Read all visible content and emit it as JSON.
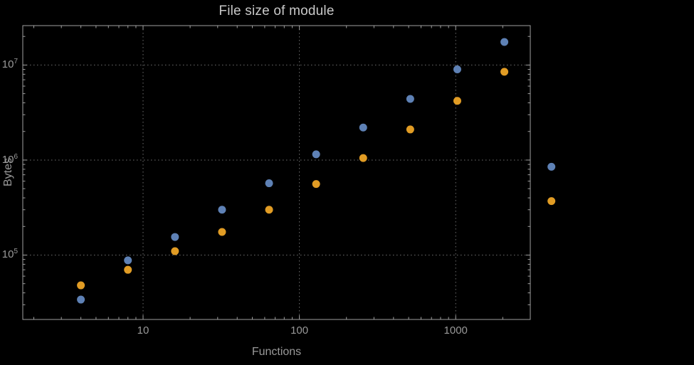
{
  "chart_data": {
    "type": "scatter",
    "title": "File size of module",
    "xlabel": "Functions",
    "ylabel": "Bytes",
    "x_scale": "log",
    "y_scale": "log",
    "x_range": [
      1.7,
      3000
    ],
    "y_range": [
      21000,
      26000000
    ],
    "grid": true,
    "legend": "none",
    "x_ticks": [
      {
        "value": 10,
        "label": "10"
      },
      {
        "value": 100,
        "label": "100"
      },
      {
        "value": 1000,
        "label": "1000"
      }
    ],
    "y_ticks": [
      {
        "value": 100000,
        "base": "10",
        "exp": "5"
      },
      {
        "value": 1000000,
        "base": "10",
        "exp": "6"
      },
      {
        "value": 10000000,
        "base": "10",
        "exp": "7"
      }
    ],
    "series": [
      {
        "name": "series-1-blue",
        "color": "#5e81b5",
        "points": [
          [
            4,
            34000
          ],
          [
            8,
            88000
          ],
          [
            16,
            155000
          ],
          [
            32,
            300000
          ],
          [
            64,
            570000
          ],
          [
            128,
            1150000
          ],
          [
            256,
            2200000
          ],
          [
            512,
            4400000
          ],
          [
            1024,
            9000000
          ],
          [
            2048,
            17500000
          ],
          [
            4096,
            850000
          ]
        ]
      },
      {
        "name": "series-2-orange",
        "color": "#e19c24",
        "points": [
          [
            4,
            48000
          ],
          [
            8,
            70000
          ],
          [
            16,
            110000
          ],
          [
            32,
            175000
          ],
          [
            64,
            300000
          ],
          [
            128,
            560000
          ],
          [
            256,
            1050000
          ],
          [
            512,
            2100000
          ],
          [
            1024,
            4200000
          ],
          [
            2048,
            8500000
          ],
          [
            4096,
            370000
          ]
        ]
      }
    ],
    "colors": {
      "background": "#000000",
      "frame": "#a0a0a0",
      "grid": "#6f6f6f",
      "tick_text": "#999999",
      "axis_label_text": "#999999",
      "title_text": "#c9c9c9"
    }
  }
}
